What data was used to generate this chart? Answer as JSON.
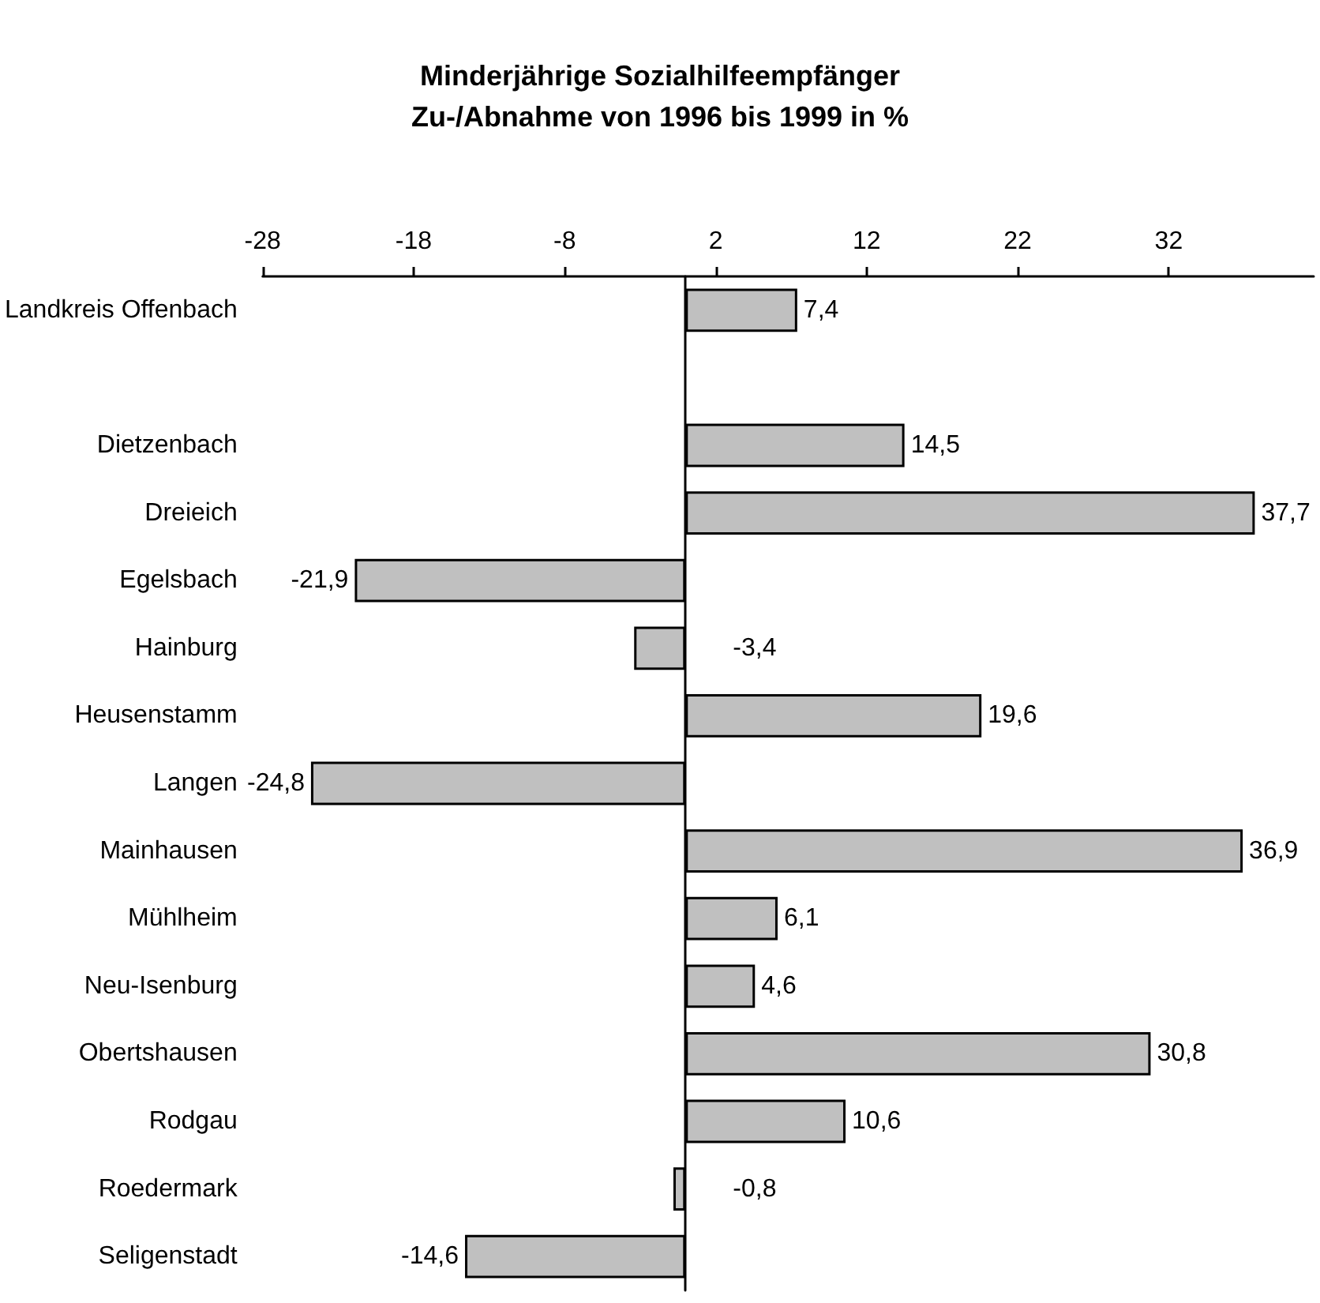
{
  "chart_data": {
    "type": "bar",
    "orientation": "horizontal",
    "title": "Minderjährige Sozialhilfeempfänger\nZu-/Abnahme von 1996 bis 1999 in %",
    "categories": [
      "Landkreis Offenbach",
      null,
      "Dietzenbach",
      "Dreieich",
      "Egelsbach",
      "Hainburg",
      "Heusenstamm",
      "Langen",
      "Mainhausen",
      "Mühlheim",
      "Neu-Isenburg",
      "Obertshausen",
      "Rodgau",
      "Roedermark",
      "Seligenstadt"
    ],
    "values": [
      7.4,
      null,
      14.5,
      37.7,
      -21.9,
      -3.4,
      19.6,
      -24.8,
      36.9,
      6.1,
      4.6,
      30.8,
      10.6,
      -0.8,
      -14.6
    ],
    "value_labels": [
      "7,4",
      null,
      "14,5",
      "37,7",
      "-21,9",
      "-3,4",
      "19,6",
      "-24,8",
      "36,9",
      "6,1",
      "4,6",
      "30,8",
      "10,6",
      "-0,8",
      "-14,6"
    ],
    "color": "#c0c0c0",
    "xlim": [
      -28,
      41.6
    ],
    "xticks": [
      -28,
      -18,
      -8,
      2,
      12,
      22,
      32
    ],
    "grid": false
  }
}
